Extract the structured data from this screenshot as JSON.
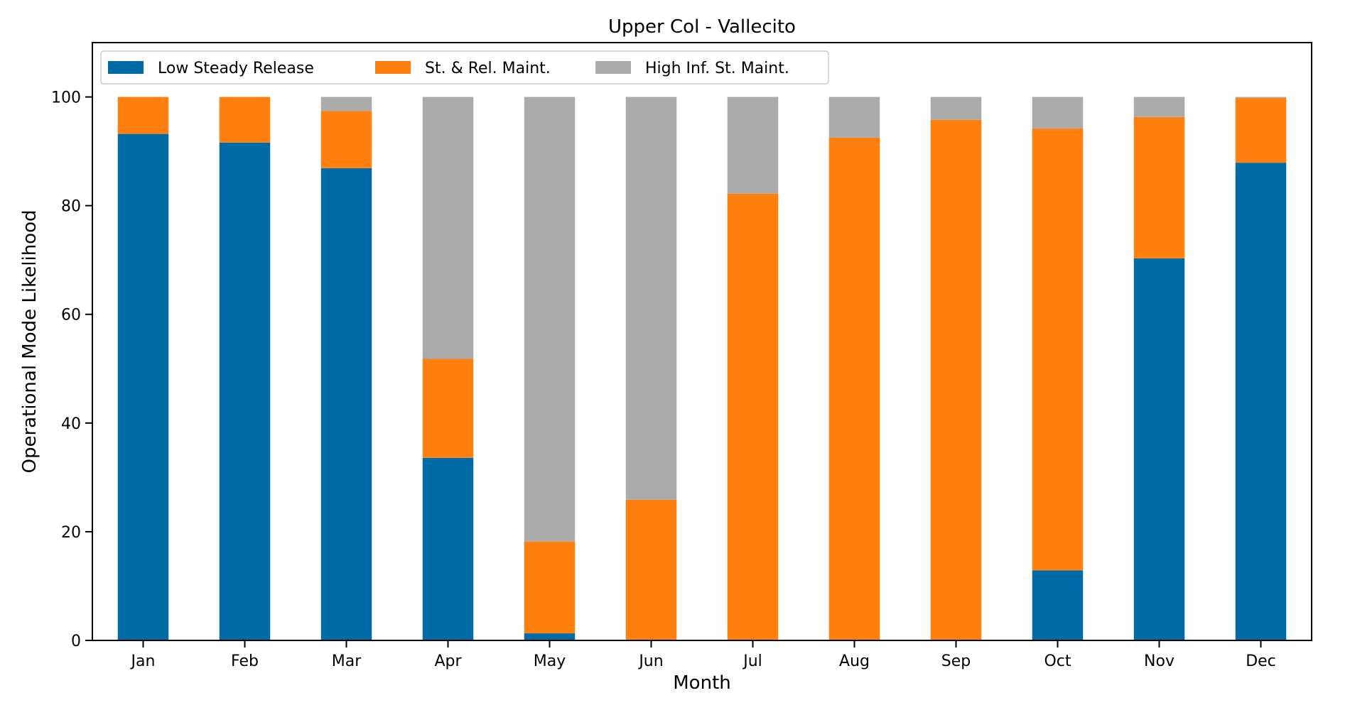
{
  "chart_data": {
    "type": "bar",
    "stacked": true,
    "title": "Upper Col - Vallecito",
    "xlabel": "Month",
    "ylabel": "Operational Mode Likelihood",
    "categories": [
      "Jan",
      "Feb",
      "Mar",
      "Apr",
      "May",
      "Jun",
      "Jul",
      "Aug",
      "Sep",
      "Oct",
      "Nov",
      "Dec"
    ],
    "ylim": [
      0,
      110
    ],
    "yticks": [
      0,
      20,
      40,
      60,
      80,
      100
    ],
    "legend_position": "top-left",
    "grid": false,
    "series": [
      {
        "name": "Low Steady Release",
        "color": "#006ba4",
        "values": [
          93.2,
          91.6,
          86.9,
          33.6,
          1.3,
          0,
          0,
          0,
          0,
          12.9,
          70.3,
          87.9
        ]
      },
      {
        "name": "St. & Rel. Maint.",
        "color": "#ff800e",
        "values": [
          6.8,
          8.4,
          10.5,
          18.2,
          16.9,
          25.9,
          82.2,
          92.5,
          95.8,
          81.3,
          26.0,
          11.9
        ]
      },
      {
        "name": "High Inf. St. Maint.",
        "color": "#ababab",
        "values": [
          0,
          0,
          2.6,
          48.2,
          81.8,
          74.1,
          17.8,
          7.5,
          4.2,
          5.8,
          3.7,
          0.2
        ]
      }
    ]
  }
}
